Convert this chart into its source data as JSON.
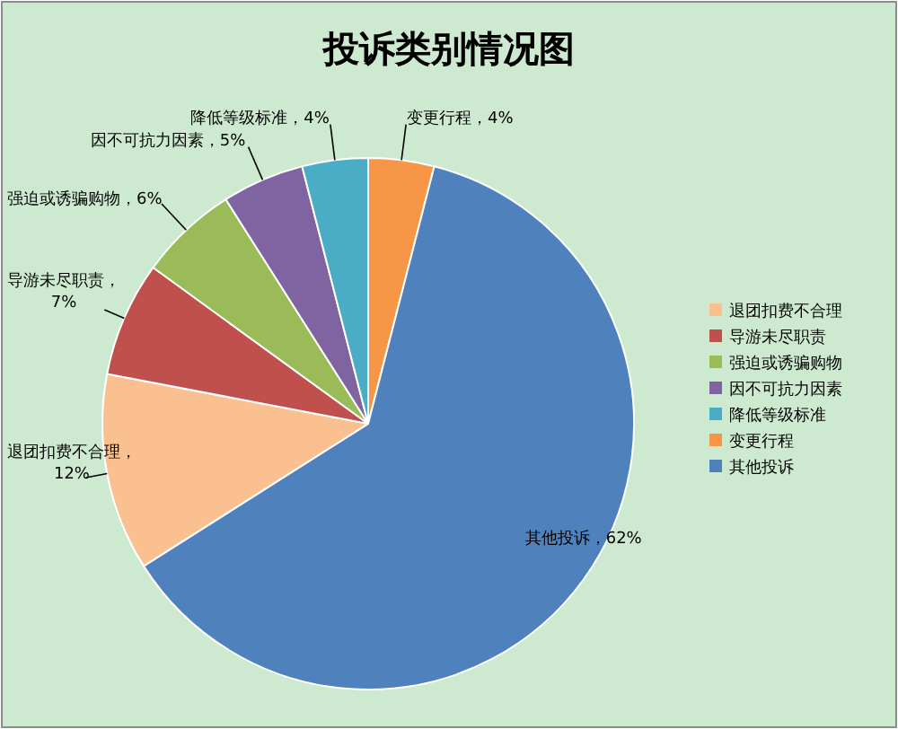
{
  "chart_data": {
    "type": "pie",
    "title": "投诉类别情况图",
    "categories": [
      "退团扣费不合理",
      "导游未尽职责",
      "强迫或诱骗购物",
      "因不可抗力因素",
      "降低等级标准",
      "变更行程",
      "其他投诉"
    ],
    "values": [
      12,
      7,
      6,
      5,
      4,
      4,
      62
    ],
    "value_labels": [
      "退团扣费不合理，12%",
      "导游未尽职责，7%",
      "强迫或诱骗购物，6%",
      "因不可抗力因素，5%",
      "降低等级标准，4%",
      "变更行程，4%",
      "其他投诉，62%"
    ],
    "colors": [
      "#fac090",
      "#c0504d",
      "#9bbb59",
      "#8064a2",
      "#4bacc6",
      "#f79646",
      "#4f81bd"
    ],
    "legend": "right"
  }
}
